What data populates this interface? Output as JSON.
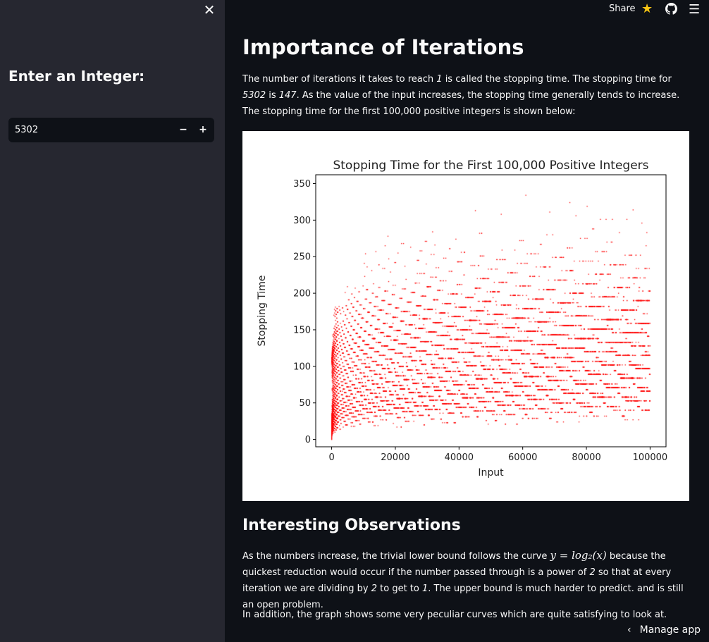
{
  "sidebar": {
    "close_icon": "close-icon",
    "heading": "Enter an Integer:",
    "input_value": "5302",
    "minus_label": "−",
    "plus_label": "+"
  },
  "topbar": {
    "share_label": "Share",
    "star_icon": "star-icon",
    "github_icon": "github-icon",
    "menu_icon": "hamburger-menu-icon"
  },
  "main": {
    "title": "Importance of Iterations",
    "intro": {
      "p1": "The number of iterations it takes to reach ",
      "one": "1",
      "p2": " is called the stopping time. The stopping time for ",
      "input": "5302",
      "p3": " is ",
      "stop": "147",
      "p4": ". As the value of the input increases, the stopping time generally tends to increase. The stopping time for the first 100,000 positive integers is shown below:"
    },
    "observations_title": "Interesting Observations",
    "obs": {
      "a": "As the numbers increase, the trivial lower bound follows the curve ",
      "math": "y = log₂(x)",
      "b": " because the quickest reduction would occur if the number passed through is a power of ",
      "two": "2",
      "c": " so that at every iteration we are dividing by ",
      "two2": "2",
      "d": " to get to ",
      "one": "1",
      "e": ". The upper bound is much harder to predict. and is still an open problem."
    },
    "closing": "In addition, the graph shows some very peculiar curves which are quite satisfying to look at."
  },
  "footer": {
    "manage_label": "Manage app"
  },
  "chart_data": {
    "type": "scatter",
    "title": "Stopping Time for the First 100,000 Positive Integers",
    "xlabel": "Input",
    "ylabel": "Stopping Time",
    "xlim": [
      -5000,
      105000
    ],
    "ylim": [
      -10,
      362
    ],
    "xticks": [
      0,
      20000,
      40000,
      60000,
      80000,
      100000
    ],
    "yticks": [
      0,
      50,
      100,
      150,
      200,
      250,
      300,
      350
    ],
    "xtick_labels": [
      "0",
      "20000",
      "40000",
      "60000",
      "80000",
      "100000"
    ],
    "ytick_labels": [
      "0",
      "50",
      "100",
      "150",
      "200",
      "250",
      "300",
      "350"
    ],
    "point_color": "#ff0000",
    "n_max": 100000,
    "grid": false
  }
}
